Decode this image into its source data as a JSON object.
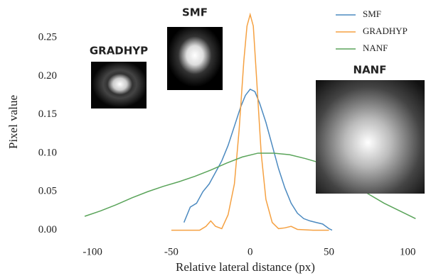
{
  "chart_data": {
    "type": "line",
    "xlabel": "Relative lateral distance (px)",
    "ylabel": "Pixel value",
    "xlim": [
      -110,
      108
    ],
    "ylim": [
      -0.005,
      0.285
    ],
    "xticks": [
      -100,
      -50,
      0,
      50,
      100
    ],
    "yticks": [
      {
        "value": 0,
        "label": "0.00"
      },
      {
        "value": 0.05,
        "label": "0.05"
      },
      {
        "value": 0.1,
        "label": "0.10"
      },
      {
        "value": 0.15,
        "label": "0.15"
      },
      {
        "value": 0.2,
        "label": "0.20"
      },
      {
        "value": 0.25,
        "label": "0.25"
      }
    ],
    "legend": "upper right",
    "annotations": [
      "GRADHYP",
      "SMF",
      "NANF"
    ],
    "series": [
      {
        "name": "SMF",
        "color": "#4c8ac0",
        "x": [
          -42,
          -38,
          -34,
          -30,
          -26,
          -22,
          -18,
          -14,
          -10,
          -6,
          -3,
          0,
          3,
          6,
          10,
          14,
          18,
          22,
          26,
          30,
          34,
          38,
          42,
          46,
          50,
          52
        ],
        "values": [
          0.01,
          0.03,
          0.035,
          0.05,
          0.06,
          0.075,
          0.09,
          0.11,
          0.135,
          0.16,
          0.175,
          0.183,
          0.18,
          0.165,
          0.14,
          0.11,
          0.08,
          0.055,
          0.035,
          0.022,
          0.015,
          0.012,
          0.01,
          0.008,
          0.002,
          0.0
        ]
      },
      {
        "name": "GRADHYP",
        "color": "#f5a142",
        "x": [
          -50,
          -40,
          -32,
          -28,
          -25,
          -22,
          -18,
          -14,
          -10,
          -7,
          -4,
          -2,
          0,
          2,
          4,
          7,
          10,
          14,
          18,
          22,
          26,
          30,
          40,
          50
        ],
        "values": [
          0,
          0,
          0,
          0.005,
          0.012,
          0.005,
          0.002,
          0.02,
          0.06,
          0.13,
          0.22,
          0.265,
          0.28,
          0.265,
          0.2,
          0.1,
          0.04,
          0.01,
          0.002,
          0.003,
          0.005,
          0.001,
          0,
          0
        ]
      },
      {
        "name": "NANF",
        "color": "#5aa45a",
        "x": [
          -105,
          -95,
          -85,
          -75,
          -65,
          -55,
          -45,
          -35,
          -25,
          -15,
          -5,
          5,
          15,
          25,
          35,
          45,
          55,
          65,
          75,
          85,
          95,
          105
        ],
        "values": [
          0.018,
          0.025,
          0.033,
          0.042,
          0.05,
          0.057,
          0.063,
          0.07,
          0.078,
          0.087,
          0.095,
          0.1,
          0.1,
          0.098,
          0.093,
          0.087,
          0.075,
          0.06,
          0.047,
          0.035,
          0.025,
          0.015
        ]
      }
    ]
  }
}
